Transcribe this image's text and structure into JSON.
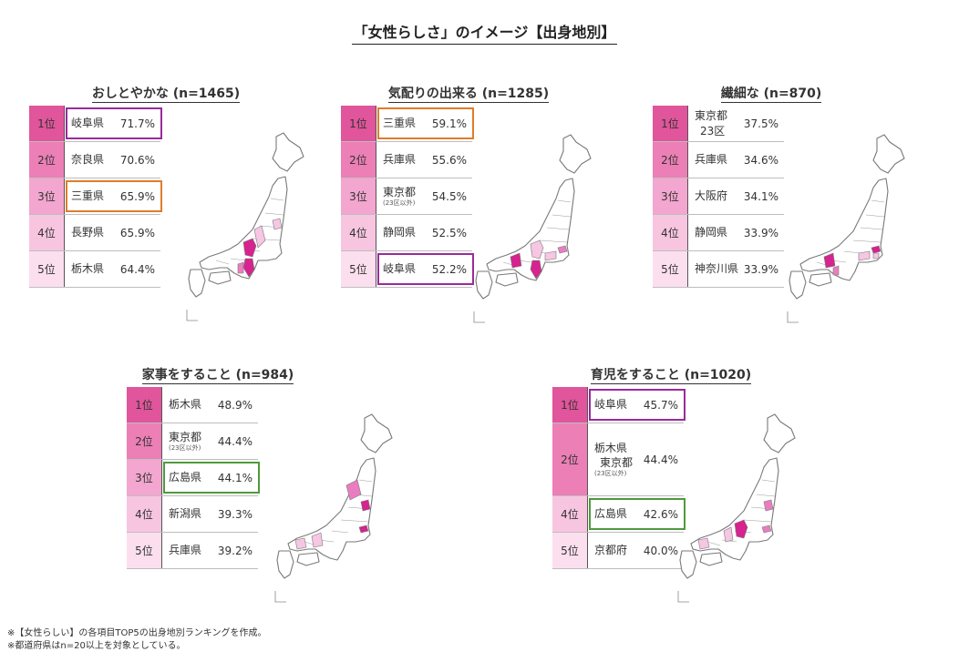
{
  "title": "「女性らしさ」のイメージ【出身地別】",
  "colors": {
    "rank1": "#e0559b",
    "rank2": "#ec7fb6",
    "rank3": "#f3a6cf",
    "rank4": "#f8c5e1",
    "rank5": "#fcdfee",
    "highlight_purple": "#9a2a9a",
    "highlight_orange": "#e07c2a",
    "highlight_green": "#4f9a3c",
    "map_magenta": "#d6238f",
    "map_pink": "#ea7dc0",
    "map_light": "#f6c6e3"
  },
  "panels": [
    {
      "id": "oshitoyaka",
      "title": "おしとやかな (n=1465)",
      "rows": [
        {
          "rank": "1位",
          "pref": "岐阜県",
          "pct": "71.7%",
          "highlight": "purple"
        },
        {
          "rank": "2位",
          "pref": "奈良県",
          "pct": "70.6%"
        },
        {
          "rank": "3位",
          "pref": "三重県",
          "pct": "65.9%",
          "highlight": "orange"
        },
        {
          "rank": "4位",
          "pref": "長野県",
          "pct": "65.9%"
        },
        {
          "rank": "5位",
          "pref": "栃木県",
          "pct": "64.4%"
        }
      ]
    },
    {
      "id": "kikubari",
      "title": "気配りの出来る (n=1285)",
      "rows": [
        {
          "rank": "1位",
          "pref": "三重県",
          "pct": "59.1%",
          "highlight": "orange"
        },
        {
          "rank": "2位",
          "pref": "兵庫県",
          "pct": "55.6%"
        },
        {
          "rank": "3位",
          "pref": "東京都",
          "sub": "(23区以外)",
          "pct": "54.5%"
        },
        {
          "rank": "4位",
          "pref": "静岡県",
          "pct": "52.5%"
        },
        {
          "rank": "5位",
          "pref": "岐阜県",
          "pct": "52.2%",
          "highlight": "purple"
        }
      ]
    },
    {
      "id": "sensai",
      "title": "繊細な (n=870)",
      "rows": [
        {
          "rank": "1位",
          "pref": "東京都",
          "pref2": "23区",
          "pct": "37.5%"
        },
        {
          "rank": "2位",
          "pref": "兵庫県",
          "pct": "34.6%"
        },
        {
          "rank": "3位",
          "pref": "大阪府",
          "pct": "34.1%"
        },
        {
          "rank": "4位",
          "pref": "静岡県",
          "pct": "33.9%"
        },
        {
          "rank": "5位",
          "pref": "神奈川県",
          "pct": "33.9%"
        }
      ]
    },
    {
      "id": "kaji",
      "title": "家事をすること (n=984)",
      "rows": [
        {
          "rank": "1位",
          "pref": "栃木県",
          "pct": "48.9%"
        },
        {
          "rank": "2位",
          "pref": "東京都",
          "sub": "(23区以外)",
          "pct": "44.4%"
        },
        {
          "rank": "3位",
          "pref": "広島県",
          "pct": "44.1%",
          "highlight": "green"
        },
        {
          "rank": "4位",
          "pref": "新潟県",
          "pct": "39.3%"
        },
        {
          "rank": "5位",
          "pref": "兵庫県",
          "pct": "39.2%"
        }
      ]
    },
    {
      "id": "ikuji",
      "title": "育児をすること (n=1020)",
      "rows": [
        {
          "rank": "1位",
          "pref": "岐阜県",
          "pct": "45.7%",
          "highlight": "purple"
        },
        {
          "rank": "2位",
          "pref": "栃木県",
          "pref2": "東京都",
          "sub": "(23区以外)",
          "pct": "44.4%",
          "tall": true
        },
        {
          "rank": "4位",
          "pref": "広島県",
          "pct": "42.6%",
          "highlight": "green"
        },
        {
          "rank": "5位",
          "pref": "京都府",
          "pct": "40.0%"
        }
      ]
    }
  ],
  "chart_data": [
    {
      "type": "table",
      "title": "おしとやかな (n=1465)",
      "categories": [
        "岐阜県",
        "奈良県",
        "三重県",
        "長野県",
        "栃木県"
      ],
      "values": [
        71.7,
        70.6,
        65.9,
        65.9,
        64.4
      ],
      "unit": "%"
    },
    {
      "type": "table",
      "title": "気配りの出来る (n=1285)",
      "categories": [
        "三重県",
        "兵庫県",
        "東京都(23区以外)",
        "静岡県",
        "岐阜県"
      ],
      "values": [
        59.1,
        55.6,
        54.5,
        52.5,
        52.2
      ],
      "unit": "%"
    },
    {
      "type": "table",
      "title": "繊細な (n=870)",
      "categories": [
        "東京都23区",
        "兵庫県",
        "大阪府",
        "静岡県",
        "神奈川県"
      ],
      "values": [
        37.5,
        34.6,
        34.1,
        33.9,
        33.9
      ],
      "unit": "%"
    },
    {
      "type": "table",
      "title": "家事をすること (n=984)",
      "categories": [
        "栃木県",
        "東京都(23区以外)",
        "広島県",
        "新潟県",
        "兵庫県"
      ],
      "values": [
        48.9,
        44.4,
        44.1,
        39.3,
        39.2
      ],
      "unit": "%"
    },
    {
      "type": "table",
      "title": "育児をすること (n=1020)",
      "categories": [
        "岐阜県",
        "栃木県",
        "東京都(23区以外)",
        "広島県",
        "京都府"
      ],
      "values": [
        45.7,
        44.4,
        44.4,
        42.6,
        40.0
      ],
      "unit": "%"
    }
  ],
  "footnotes": [
    "※【女性らしい】の各項目TOP5の出身地別ランキングを作成。",
    "※都道府県はn=20以上を対象としている。"
  ]
}
